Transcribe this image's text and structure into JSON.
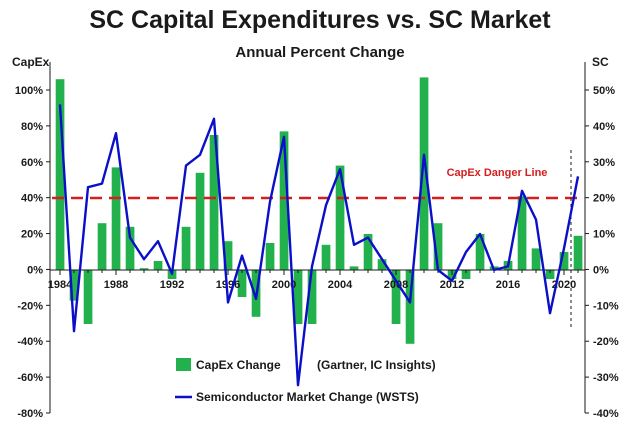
{
  "chart_data": {
    "type": "bar",
    "title": "SC Capital Expenditures vs. SC Market",
    "subtitle": "Annual Percent Change",
    "y_left_label": "CapEx",
    "y_right_label": "SC",
    "y_left_lim": [
      -80,
      110
    ],
    "y_right_lim": [
      -40,
      55
    ],
    "y_left_ticks": [
      "100%",
      "80%",
      "60%",
      "40%",
      "20%",
      "0%",
      "-20%",
      "-40%",
      "-60%",
      "-80%"
    ],
    "y_right_ticks": [
      "50%",
      "40%",
      "30%",
      "20%",
      "10%",
      "0%",
      "-10%",
      "-20%",
      "-30%",
      "-40%"
    ],
    "x_tick_labels": [
      "1984",
      "1988",
      "1992",
      "1996",
      "2000",
      "2004",
      "2008",
      "2012",
      "2016",
      "2020"
    ],
    "years": [
      1984,
      1985,
      1986,
      1987,
      1988,
      1989,
      1990,
      1991,
      1992,
      1993,
      1994,
      1995,
      1996,
      1997,
      1998,
      1999,
      2000,
      2001,
      2002,
      2003,
      2004,
      2005,
      2006,
      2007,
      2008,
      2009,
      2010,
      2011,
      2012,
      2013,
      2014,
      2015,
      2016,
      2017,
      2018,
      2019,
      2020,
      2021
    ],
    "series": [
      {
        "name": "CapEx Change",
        "type": "bar",
        "axis": "left",
        "color": "#22b14c",
        "values": [
          106,
          -17,
          -30,
          26,
          57,
          24,
          1,
          5,
          -5,
          24,
          54,
          75,
          16,
          -15,
          -26,
          15,
          77,
          -30,
          -30,
          14,
          58,
          2,
          20,
          6,
          -30,
          -41,
          107,
          26,
          -5,
          -5,
          20,
          2,
          5,
          41,
          12,
          -5,
          10,
          19
        ]
      },
      {
        "name": "Semiconductor Market Change",
        "type": "line",
        "axis": "right",
        "color": "#0b10c8",
        "values": [
          46,
          -17,
          23,
          24,
          38,
          9,
          3,
          8,
          -1,
          29,
          32,
          42,
          -9,
          4,
          -8,
          19,
          37,
          -32,
          1,
          18,
          28,
          7,
          9,
          3,
          -3,
          -9,
          32,
          0,
          -3,
          5,
          10,
          0,
          1,
          22,
          14,
          -12,
          6,
          26
        ]
      }
    ],
    "danger_line": {
      "label": "CapEx Danger Line",
      "value": 40,
      "color": "#d41f1f"
    },
    "forecast_divider_year": 2020.5,
    "legend": {
      "position": "bottom-center",
      "items": [
        "CapEx Change",
        "(Gartner, IC Insights)",
        "Semiconductor Market Change (WSTS)"
      ]
    },
    "grid": false
  }
}
